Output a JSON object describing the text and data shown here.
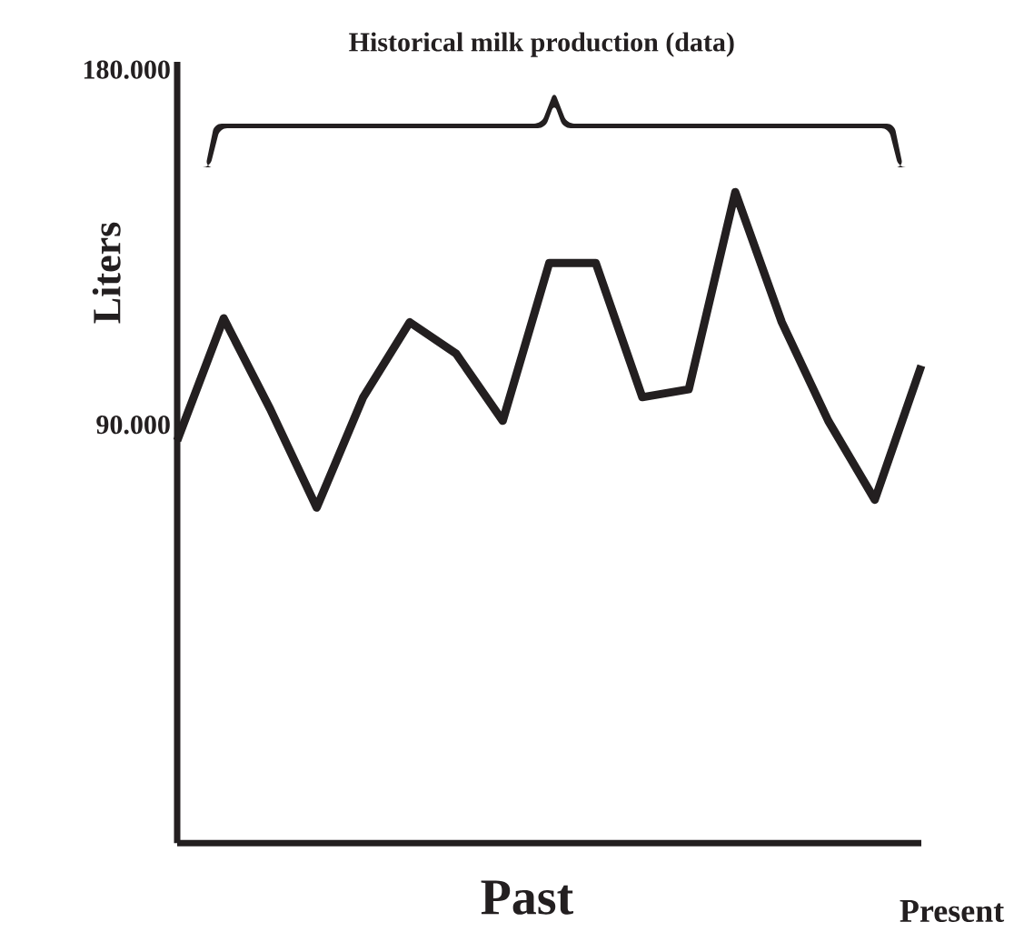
{
  "chart_data": {
    "type": "line",
    "xlabel": "Past",
    "ylabel": "Liters",
    "annotations": [
      "Historical milk production (data)",
      "Present"
    ],
    "categories": [
      null,
      null,
      null,
      null,
      null,
      null,
      null,
      null,
      null,
      null,
      null,
      null,
      null,
      null,
      null,
      null,
      null
    ],
    "values": [
      86000,
      117000,
      94000,
      69000,
      97000,
      116000,
      108000,
      91000,
      131000,
      131000,
      97000,
      99000,
      149000,
      116000,
      91000,
      71000,
      105000
    ],
    "color": "#231f20",
    "ylim": [
      -16000,
      182000
    ],
    "yticks": [
      {
        "value": 90000,
        "label": "90.000"
      },
      {
        "value": 180000,
        "label": "180.000"
      }
    ]
  }
}
